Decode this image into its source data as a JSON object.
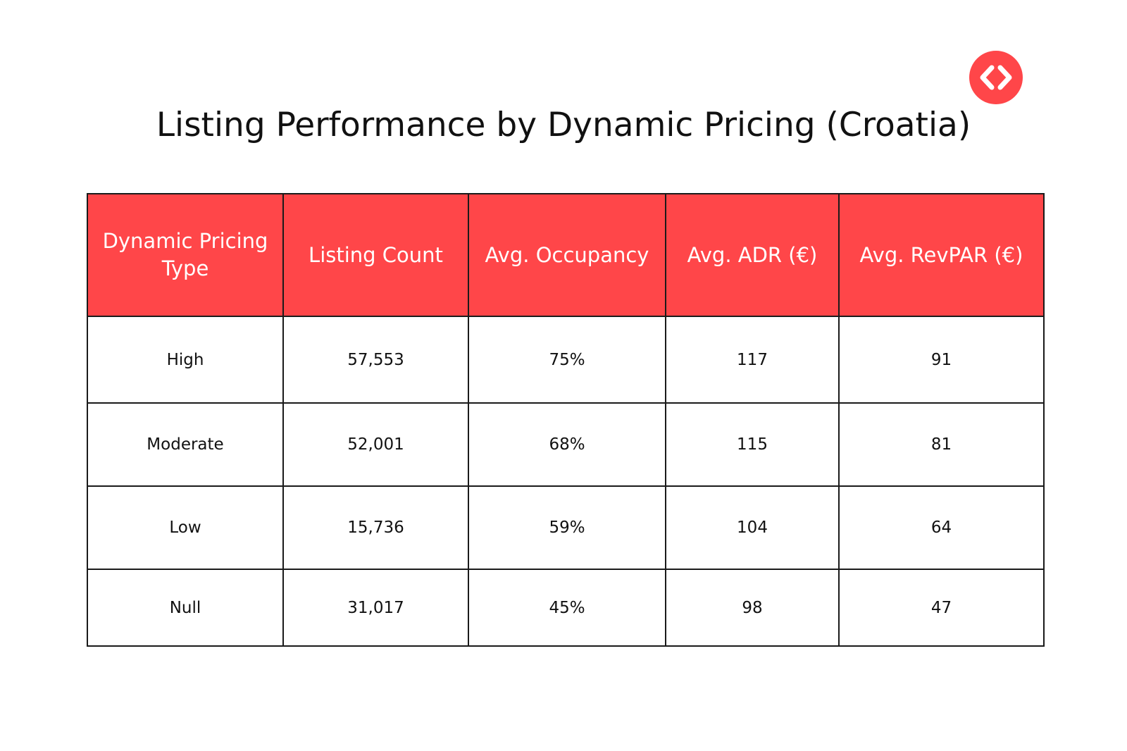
{
  "brand": {
    "logo_color": "#ff4649",
    "logo_icon": "code-brackets-icon"
  },
  "chart_data": {
    "type": "table",
    "title": "Listing Performance by Dynamic Pricing (Croatia)",
    "header_color": "#ff4649",
    "columns": [
      "Dynamic Pricing Type",
      "Listing Count",
      "Avg. Occupancy",
      "Avg. ADR (€)",
      "Avg. RevPAR (€)"
    ],
    "rows": [
      [
        "High",
        "57,553",
        "75%",
        "117",
        "91"
      ],
      [
        "Moderate",
        "52,001",
        "68%",
        "115",
        "81"
      ],
      [
        "Low",
        "15,736",
        "59%",
        "104",
        "64"
      ],
      [
        "Null",
        "31,017",
        "45%",
        "98",
        "47"
      ]
    ]
  }
}
